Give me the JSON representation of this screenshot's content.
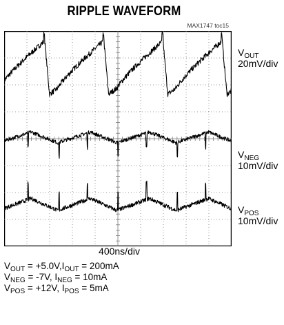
{
  "chart_data": {
    "type": "line",
    "title": "RIPPLE WAVEFORM",
    "figure_code": "MAX1747 toc15",
    "x_scale": "400ns/div",
    "grid": {
      "divisions_x": 10,
      "divisions_y": 8,
      "shown": true
    },
    "series": [
      {
        "key": "vout",
        "name_main": "V",
        "name_sub": "OUT",
        "scale": "20mV/div",
        "center_div": 1.3,
        "amplitude_div": 1.1,
        "period_div": 2.6,
        "shape": "sawtooth-rise-sharp-drop"
      },
      {
        "key": "vneg",
        "name_main": "V",
        "name_sub": "NEG",
        "scale": "10mV/div",
        "center_div": 4.0,
        "amplitude_div": 0.25,
        "period_div": 2.6,
        "shape": "triangular-with-spikes"
      },
      {
        "key": "vpos",
        "name_main": "V",
        "name_sub": "POS",
        "scale": "10mV/div",
        "center_div": 6.5,
        "amplitude_div": 0.28,
        "period_div": 2.6,
        "shape": "triangular-with-spikes"
      }
    ]
  },
  "conditions": [
    {
      "parts": [
        {
          "t": "V"
        },
        {
          "s": "OUT"
        },
        {
          "t": " = +5.0V,I"
        },
        {
          "s": "OUT"
        },
        {
          "t": " = 200mA"
        }
      ]
    },
    {
      "parts": [
        {
          "t": "V"
        },
        {
          "s": "NEG"
        },
        {
          "t": " = -7V, I"
        },
        {
          "s": "NEG"
        },
        {
          "t": " = 10mA"
        }
      ]
    },
    {
      "parts": [
        {
          "t": "V"
        },
        {
          "s": "POS"
        },
        {
          "t": " = +12V, I"
        },
        {
          "s": "POS"
        },
        {
          "t": " = 5mA"
        }
      ]
    }
  ]
}
